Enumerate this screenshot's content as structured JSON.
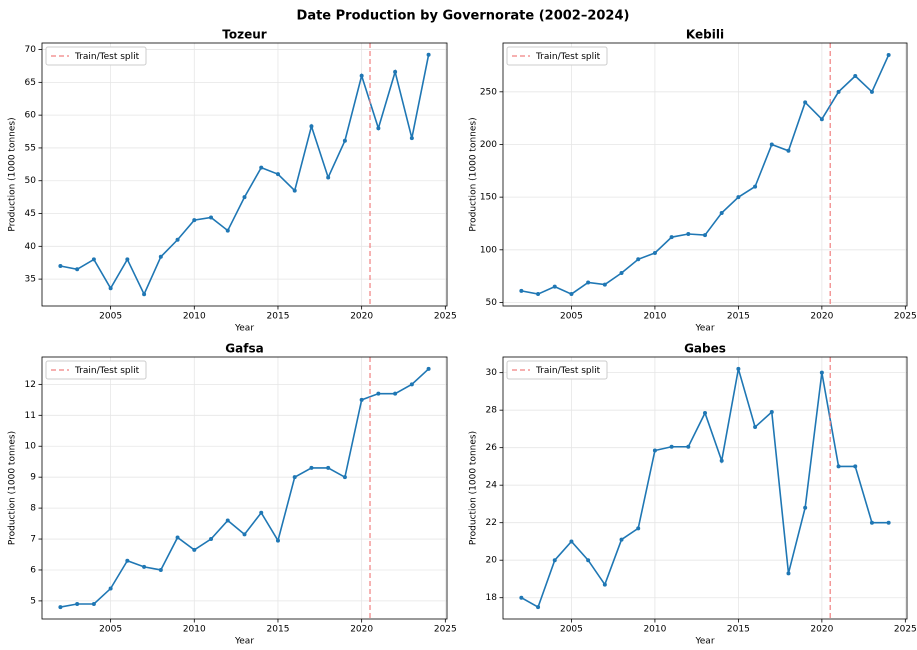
{
  "title": "Date Production by Governorate (2002–2024)",
  "chart_data": [
    {
      "type": "line",
      "title": "Tozeur",
      "xlabel": "Year",
      "ylabel": "Production (1000 tonnes)",
      "x": [
        2002,
        2003,
        2004,
        2005,
        2006,
        2007,
        2008,
        2009,
        2010,
        2011,
        2012,
        2013,
        2014,
        2015,
        2016,
        2017,
        2018,
        2019,
        2020,
        2021,
        2022,
        2023,
        2024
      ],
      "values": [
        37.0,
        36.5,
        38.0,
        33.6,
        38.0,
        32.7,
        38.4,
        41.0,
        44.0,
        44.4,
        42.4,
        47.5,
        52.0,
        51.0,
        48.5,
        58.3,
        50.5,
        56.1,
        66.0,
        58.0,
        66.6,
        56.5,
        69.2
      ],
      "color": "#1f77b4",
      "xlim": [
        2000.9,
        2025.1
      ],
      "xticks": [
        2005,
        2010,
        2015,
        2020,
        2025
      ],
      "ylim": [
        30.9,
        71.0
      ],
      "yticks": [
        35,
        40,
        45,
        50,
        55,
        60,
        65,
        70
      ],
      "grid": true,
      "vline": {
        "x": 2020.5,
        "label": "Train/Test split",
        "color": "#f08080"
      },
      "legend": "upper left"
    },
    {
      "type": "line",
      "title": "Kebili",
      "xlabel": "Year",
      "ylabel": "Production (1000 tonnes)",
      "x": [
        2002,
        2003,
        2004,
        2005,
        2006,
        2007,
        2008,
        2009,
        2010,
        2011,
        2012,
        2013,
        2014,
        2015,
        2016,
        2017,
        2018,
        2019,
        2020,
        2021,
        2022,
        2023,
        2024
      ],
      "values": [
        61,
        58,
        65,
        58,
        69,
        67,
        78,
        91,
        97,
        112,
        115,
        114,
        135,
        150,
        160,
        200,
        194,
        240,
        224,
        250,
        265,
        250,
        285
      ],
      "color": "#1f77b4",
      "xlim": [
        2000.9,
        2025.1
      ],
      "xticks": [
        2005,
        2010,
        2015,
        2020,
        2025
      ],
      "ylim": [
        46.65,
        296.35
      ],
      "yticks": [
        50,
        100,
        150,
        200,
        250
      ],
      "grid": true,
      "vline": {
        "x": 2020.5,
        "label": "Train/Test split",
        "color": "#f08080"
      },
      "legend": "upper left"
    },
    {
      "type": "line",
      "title": "Gafsa",
      "xlabel": "Year",
      "ylabel": "Production (1000 tonnes)",
      "x": [
        2002,
        2003,
        2004,
        2005,
        2006,
        2007,
        2008,
        2009,
        2010,
        2011,
        2012,
        2013,
        2014,
        2015,
        2016,
        2017,
        2018,
        2019,
        2020,
        2021,
        2022,
        2023,
        2024
      ],
      "values": [
        4.8,
        4.9,
        4.9,
        5.4,
        6.3,
        6.1,
        6.0,
        7.05,
        6.65,
        7.0,
        7.6,
        7.15,
        7.85,
        6.95,
        9.0,
        9.3,
        9.3,
        9.0,
        11.5,
        11.7,
        11.7,
        12.0,
        12.5
      ],
      "color": "#1f77b4",
      "xlim": [
        2000.9,
        2025.1
      ],
      "xticks": [
        2005,
        2010,
        2015,
        2020,
        2025
      ],
      "ylim": [
        4.415,
        12.885
      ],
      "yticks": [
        5,
        6,
        7,
        8,
        9,
        10,
        11,
        12
      ],
      "grid": true,
      "vline": {
        "x": 2020.5,
        "label": "Train/Test split",
        "color": "#f08080"
      },
      "legend": "upper left"
    },
    {
      "type": "line",
      "title": "Gabes",
      "xlabel": "Year",
      "ylabel": "Production (1000 tonnes)",
      "x": [
        2002,
        2003,
        2004,
        2005,
        2006,
        2007,
        2008,
        2009,
        2010,
        2011,
        2012,
        2013,
        2014,
        2015,
        2016,
        2017,
        2018,
        2019,
        2020,
        2021,
        2022,
        2023,
        2024
      ],
      "values": [
        18.0,
        17.5,
        20.0,
        21.0,
        20.0,
        18.7,
        21.1,
        21.7,
        25.85,
        26.05,
        26.05,
        27.85,
        25.3,
        30.2,
        27.1,
        27.9,
        19.3,
        22.8,
        30.0,
        25.0,
        25.0,
        22.0,
        22.0
      ],
      "color": "#1f77b4",
      "xlim": [
        2000.9,
        2025.1
      ],
      "xticks": [
        2005,
        2010,
        2015,
        2020,
        2025
      ],
      "ylim": [
        16.865,
        30.835
      ],
      "yticks": [
        18,
        20,
        22,
        24,
        26,
        28,
        30
      ],
      "grid": true,
      "vline": {
        "x": 2020.5,
        "label": "Train/Test split",
        "color": "#f08080"
      },
      "legend": "upper left"
    }
  ]
}
